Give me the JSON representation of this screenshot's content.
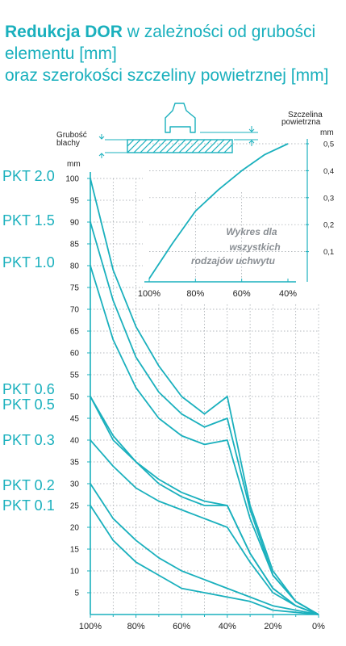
{
  "title": {
    "bold": "Redukcja DOR",
    "rest": " w zależności od grubości elementu [mm]",
    "line2": "oraz szerokości szczeliny powietrznej [mm]"
  },
  "colors": {
    "accent": "#1ab0bd",
    "grid": "#9aa0a6",
    "text": "#222222",
    "note": "#8a8f94"
  },
  "schematic": {
    "thickness_label_line1": "Grubość",
    "thickness_label_line2": "blachy",
    "gap_label_line1": "Szczelina",
    "gap_label_line2": "powietrzna"
  },
  "chart_data": [
    {
      "type": "line",
      "name": "main",
      "ylabel": "mm",
      "ylim": [
        0,
        100
      ],
      "xlim": [
        100,
        0
      ],
      "x_tick_labels": [
        "100%",
        "80%",
        "60%",
        "40%",
        "20%",
        "0%"
      ],
      "x_ticks": [
        100,
        80,
        60,
        40,
        20,
        0
      ],
      "y_ticks": [
        5,
        10,
        15,
        20,
        25,
        30,
        35,
        40,
        45,
        50,
        55,
        60,
        65,
        70,
        75,
        80,
        85,
        90,
        95,
        100
      ],
      "grid": true,
      "series": [
        {
          "name": "PKT 2.0",
          "x": [
            100,
            90,
            80,
            70,
            60,
            50,
            40,
            30,
            20,
            10,
            0
          ],
          "y": [
            100,
            79,
            66,
            57,
            50,
            46,
            50,
            25,
            10,
            3,
            0
          ]
        },
        {
          "name": "PKT 1.5",
          "x": [
            100,
            90,
            80,
            70,
            60,
            50,
            40,
            30,
            20,
            10,
            0
          ],
          "y": [
            90,
            72,
            59,
            51,
            46,
            43,
            45,
            24,
            9,
            3,
            0
          ]
        },
        {
          "name": "PKT 1.0",
          "x": [
            100,
            90,
            80,
            70,
            60,
            50,
            40,
            30,
            20,
            10,
            0
          ],
          "y": [
            80,
            63,
            52,
            45,
            41,
            39,
            40,
            22,
            9,
            3,
            0
          ]
        },
        {
          "name": "PKT 0.6",
          "x": [
            100,
            90,
            80,
            70,
            60,
            50,
            40,
            30,
            20,
            10,
            0
          ],
          "y": [
            50,
            41,
            35,
            31,
            28,
            26,
            25,
            14,
            6,
            2,
            0
          ]
        },
        {
          "name": "PKT 0.5",
          "x": [
            100,
            90,
            80,
            70,
            60,
            50,
            40,
            30,
            20,
            10,
            0
          ],
          "y": [
            50,
            40,
            35,
            30,
            27,
            25,
            25,
            14,
            6,
            2,
            0
          ]
        },
        {
          "name": "PKT 0.3",
          "x": [
            100,
            90,
            80,
            70,
            60,
            50,
            40,
            30,
            20,
            10,
            0
          ],
          "y": [
            40,
            34,
            29,
            26,
            24,
            22,
            20,
            12,
            5,
            2,
            0
          ]
        },
        {
          "name": "PKT 0.2",
          "x": [
            100,
            90,
            80,
            70,
            60,
            50,
            40,
            30,
            20,
            10,
            0
          ],
          "y": [
            30,
            22,
            17,
            13,
            10,
            8,
            6,
            4,
            2,
            1,
            0
          ]
        },
        {
          "name": "PKT 0.1",
          "x": [
            100,
            90,
            80,
            70,
            60,
            50,
            40,
            30,
            20,
            10,
            0
          ],
          "y": [
            25,
            17,
            12,
            9,
            6,
            5,
            4,
            3,
            1,
            0.5,
            0
          ]
        }
      ]
    },
    {
      "type": "line",
      "name": "inset",
      "ylabel": "mm",
      "ylim": [
        0,
        0.5
      ],
      "xlim": [
        100,
        40
      ],
      "x_tick_labels": [
        "100%",
        "80%",
        "60%",
        "40%"
      ],
      "x_ticks": [
        100,
        80,
        60,
        40
      ],
      "y_tick_labels": [
        "0,1",
        "0,2",
        "0,3",
        "0,4",
        "0,5"
      ],
      "y_ticks": [
        0.1,
        0.2,
        0.3,
        0.4,
        0.5
      ],
      "annotation": [
        "Wykres dla",
        "wszystkich",
        "rodzajów uchwytu"
      ],
      "grid": true,
      "series": [
        {
          "x": [
            100,
            90,
            80,
            70,
            60,
            50,
            40
          ],
          "y": [
            0,
            0.13,
            0.25,
            0.33,
            0.4,
            0.46,
            0.5
          ]
        }
      ]
    }
  ]
}
